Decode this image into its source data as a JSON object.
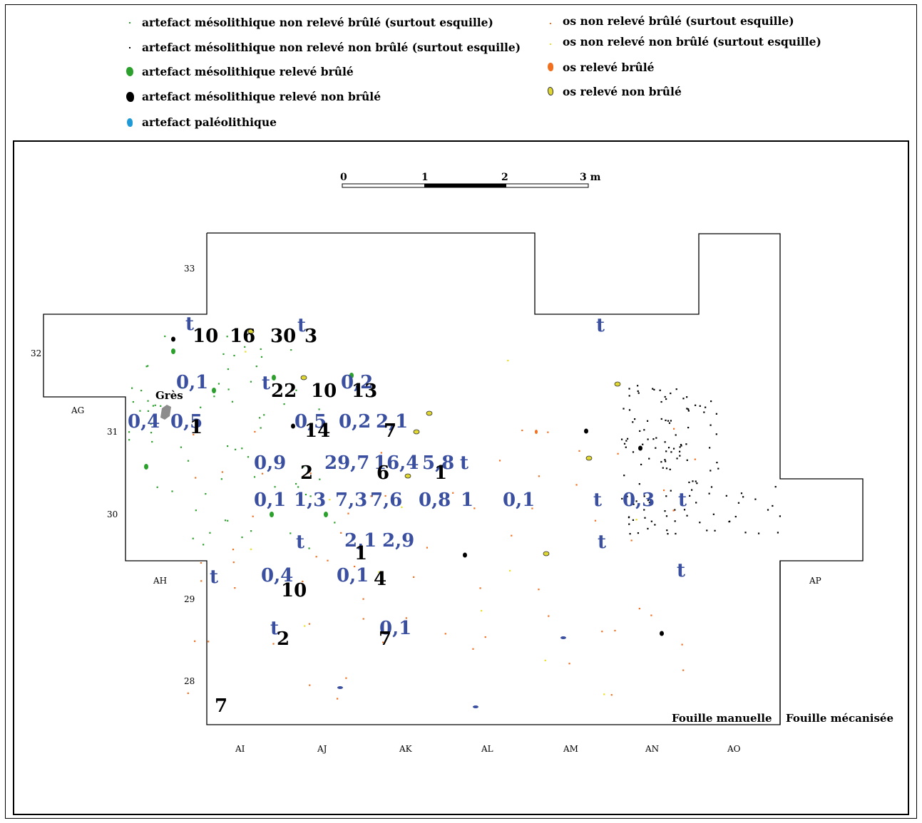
{
  "legend": {
    "left": [
      {
        "label": "artefact mésolithique non relevé brûlé (surtout esquille)",
        "color": "#2ca02c",
        "kind": "dot"
      },
      {
        "label": "artefact mésolithique non relevé non brûlé (surtout esquille)",
        "color": "#000000",
        "kind": "dot"
      },
      {
        "label": "artefact mésolithique relevé brûlé",
        "color": "#2ca02c",
        "kind": "blob"
      },
      {
        "label": "artefact mésolithique relevé non brûlé",
        "color": "#000000",
        "kind": "blob"
      },
      {
        "label": "artefact paléolithique",
        "color": "#1f9ad6",
        "kind": "blob"
      }
    ],
    "right": [
      {
        "label": "os non relevé brûlé (surtout esquille)",
        "color": "#f07020",
        "kind": "dot"
      },
      {
        "label": "os non relevé non brûlé (surtout esquille)",
        "color": "#e8e020",
        "kind": "dot"
      },
      {
        "label": "os relevé  brûlé",
        "color": "#f07020",
        "kind": "blob"
      },
      {
        "label": "os relevé non brûlé",
        "color": "#e0d830",
        "kind": "blob-outline"
      }
    ]
  },
  "scale_bar": {
    "ticks": [
      "0",
      "1",
      "2",
      "3 m"
    ]
  },
  "grid": {
    "columns": [
      "AG",
      "AH",
      "AI",
      "AJ",
      "AK",
      "AL",
      "AM",
      "AN",
      "AO",
      "AP"
    ],
    "rows": [
      "33",
      "32",
      "31",
      "30",
      "29",
      "28"
    ]
  },
  "zones": {
    "manual": "Fouille manuelle",
    "mechanical": "Fouille mécanisée"
  },
  "features": {
    "gres": "Grès"
  },
  "colors": {
    "blue_label": "#3a4fa0",
    "black_label": "#000000",
    "gres": "#8c8c8c"
  },
  "weights_blue": [
    "t",
    "t",
    "t",
    "0,1",
    "t",
    "0,2",
    "0,4",
    "0,5",
    "0,5",
    "0,2",
    "2,1",
    "0,9",
    "29,7",
    "16,4",
    "5,8",
    "t",
    "0,1",
    "1,3",
    "7,3",
    "7,6",
    "0,8",
    "1",
    "0,1",
    "t",
    "0,3",
    "t",
    "t",
    "2,1",
    "2,9",
    "t",
    "t",
    "0,4",
    "0,1",
    "t",
    "0,1",
    "t",
    "2"
  ],
  "counts_black": [
    "10",
    "16",
    "30",
    "3",
    "22",
    "10",
    "13",
    "1",
    "14",
    "7",
    "2",
    "6",
    "1",
    "1",
    "10",
    "4",
    "2",
    "7",
    "7"
  ]
}
